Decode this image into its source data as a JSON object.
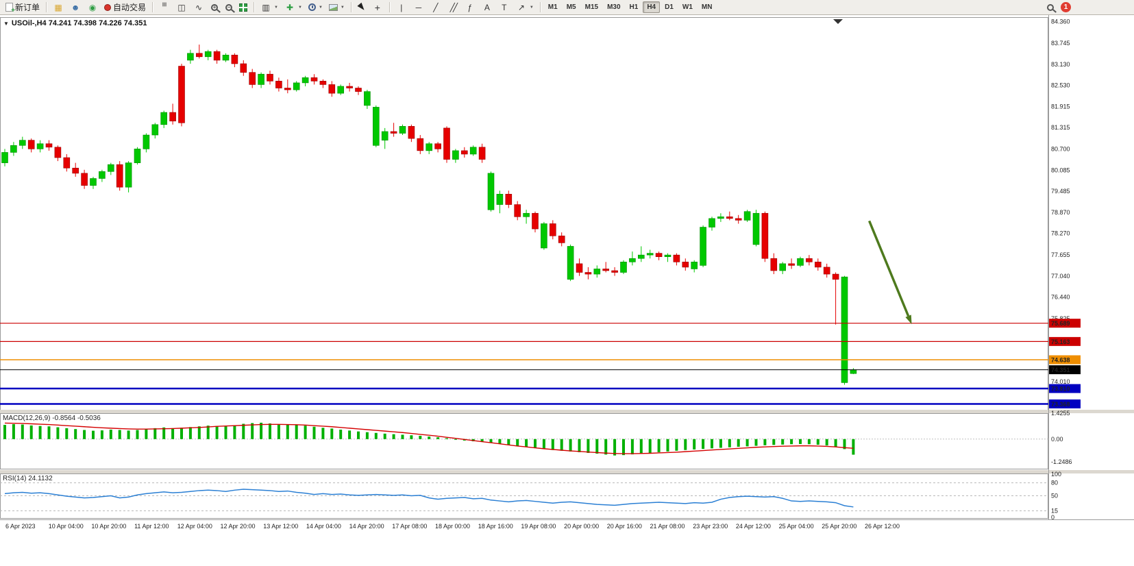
{
  "toolbar": {
    "new_order": "新订单",
    "auto_trading": "自动交易",
    "timeframes": [
      "M1",
      "M5",
      "M15",
      "M30",
      "H1",
      "H4",
      "D1",
      "W1",
      "MN"
    ],
    "active_timeframe": "H4",
    "notification_badge": "1",
    "text_tool": "A",
    "label_tool": "T"
  },
  "chart": {
    "title": "USOil-,H4 74.241 74.398 74.226 74.351",
    "macd_label": "MACD(12,26,9) -0.8564 -0.5036",
    "rsi_label": "RSI(14) 24.1132"
  },
  "chart_data": [
    {
      "type": "candlestick",
      "title": "USOil-,H4",
      "ylim": [
        73.2,
        84.45
      ],
      "y_ticks": [
        84.36,
        83.745,
        83.13,
        82.53,
        81.915,
        81.315,
        80.7,
        80.085,
        79.485,
        78.87,
        78.27,
        77.655,
        77.04,
        76.44,
        75.825,
        74.01
      ],
      "hlines": [
        {
          "value": 75.689,
          "label": "75.689",
          "color": "#cc0000",
          "width": 1.2
        },
        {
          "value": 75.163,
          "label": "75.163",
          "color": "#cc0000",
          "width": 1.2
        },
        {
          "value": 74.638,
          "label": "74.638",
          "color": "#ef8e00",
          "width": 1.5
        },
        {
          "value": 74.351,
          "label": "74.351",
          "color": "#000000",
          "width": 1
        },
        {
          "value": 73.81,
          "label": "73.810",
          "color": "#0000c0",
          "width": 2.5
        },
        {
          "value": 73.368,
          "label": "73.368",
          "color": "#0000c0",
          "width": 2.5
        }
      ],
      "up_color": "#00c800",
      "down_color": "#e60000",
      "arrow": {
        "x1_bar": 97.8,
        "y1_price": 78.63,
        "x2_bar": 102.6,
        "y2_price": 75.66,
        "color": "#4e7a1e"
      },
      "candles": [
        [
          80.3,
          80.7,
          80.2,
          80.6
        ],
        [
          80.6,
          80.9,
          80.5,
          80.8
        ],
        [
          80.8,
          81.05,
          80.7,
          80.95
        ],
        [
          80.95,
          81.0,
          80.6,
          80.7
        ],
        [
          80.7,
          80.95,
          80.6,
          80.85
        ],
        [
          80.85,
          80.95,
          80.65,
          80.75
        ],
        [
          80.75,
          80.8,
          80.35,
          80.45
        ],
        [
          80.45,
          80.55,
          80.05,
          80.15
        ],
        [
          80.15,
          80.3,
          79.9,
          80.0
        ],
        [
          80.0,
          80.1,
          79.55,
          79.65
        ],
        [
          79.65,
          79.9,
          79.55,
          79.85
        ],
        [
          79.85,
          80.1,
          79.75,
          80.05
        ],
        [
          80.05,
          80.3,
          79.95,
          80.25
        ],
        [
          80.25,
          80.35,
          79.5,
          79.6
        ],
        [
          79.6,
          80.35,
          79.45,
          80.3
        ],
        [
          80.3,
          80.75,
          80.25,
          80.7
        ],
        [
          80.7,
          81.15,
          80.6,
          81.1
        ],
        [
          81.1,
          81.45,
          81.0,
          81.4
        ],
        [
          81.4,
          81.8,
          81.3,
          81.75
        ],
        [
          81.75,
          82.0,
          81.4,
          81.5
        ],
        [
          83.08,
          83.15,
          81.35,
          81.45
        ],
        [
          83.25,
          83.55,
          83.15,
          83.45
        ],
        [
          83.45,
          83.7,
          83.3,
          83.35
        ],
        [
          83.35,
          83.55,
          83.25,
          83.5
        ],
        [
          83.5,
          83.55,
          83.15,
          83.25
        ],
        [
          83.25,
          83.45,
          83.2,
          83.4
        ],
        [
          83.4,
          83.45,
          83.05,
          83.15
        ],
        [
          83.15,
          83.25,
          82.8,
          82.9
        ],
        [
          82.9,
          83.0,
          82.45,
          82.55
        ],
        [
          82.55,
          82.9,
          82.45,
          82.85
        ],
        [
          82.85,
          82.95,
          82.55,
          82.65
        ],
        [
          82.65,
          82.75,
          82.35,
          82.45
        ],
        [
          82.45,
          82.7,
          82.3,
          82.4
        ],
        [
          82.4,
          82.65,
          82.35,
          82.6
        ],
        [
          82.6,
          82.8,
          82.5,
          82.75
        ],
        [
          82.75,
          82.85,
          82.55,
          82.65
        ],
        [
          82.65,
          82.7,
          82.45,
          82.55
        ],
        [
          82.55,
          82.65,
          82.2,
          82.3
        ],
        [
          82.3,
          82.55,
          82.25,
          82.5
        ],
        [
          82.5,
          82.6,
          82.35,
          82.45
        ],
        [
          82.45,
          82.5,
          82.25,
          82.35
        ],
        [
          81.95,
          82.4,
          81.85,
          82.35
        ],
        [
          80.8,
          81.95,
          80.75,
          81.9
        ],
        [
          80.95,
          81.3,
          80.7,
          81.2
        ],
        [
          81.2,
          81.45,
          81.05,
          81.15
        ],
        [
          81.15,
          81.4,
          81.1,
          81.35
        ],
        [
          81.35,
          81.4,
          80.9,
          81.0
        ],
        [
          81.0,
          81.1,
          80.55,
          80.65
        ],
        [
          80.65,
          80.9,
          80.55,
          80.85
        ],
        [
          80.85,
          80.9,
          80.6,
          80.7
        ],
        [
          81.3,
          81.35,
          80.3,
          80.4
        ],
        [
          80.4,
          80.7,
          80.3,
          80.65
        ],
        [
          80.65,
          80.75,
          80.45,
          80.55
        ],
        [
          80.55,
          80.8,
          80.5,
          80.75
        ],
        [
          80.75,
          80.85,
          80.3,
          80.4
        ],
        [
          78.95,
          80.05,
          78.9,
          80.0
        ],
        [
          79.1,
          79.5,
          78.85,
          79.4
        ],
        [
          79.4,
          79.5,
          79.0,
          79.1
        ],
        [
          79.1,
          79.2,
          78.65,
          78.75
        ],
        [
          78.75,
          78.95,
          78.55,
          78.85
        ],
        [
          78.85,
          78.9,
          78.3,
          78.4
        ],
        [
          77.85,
          78.6,
          77.8,
          78.55
        ],
        [
          78.55,
          78.65,
          78.1,
          78.2
        ],
        [
          78.2,
          78.3,
          77.9,
          78.0
        ],
        [
          76.95,
          77.95,
          76.9,
          77.9
        ],
        [
          77.4,
          77.55,
          77.05,
          77.15
        ],
        [
          77.15,
          77.3,
          76.95,
          77.1
        ],
        [
          77.1,
          77.35,
          77.0,
          77.25
        ],
        [
          77.25,
          77.45,
          77.15,
          77.2
        ],
        [
          77.2,
          77.3,
          77.05,
          77.15
        ],
        [
          77.15,
          77.5,
          77.1,
          77.45
        ],
        [
          77.45,
          77.75,
          77.35,
          77.55
        ],
        [
          77.55,
          77.9,
          77.45,
          77.65
        ],
        [
          77.65,
          77.8,
          77.55,
          77.7
        ],
        [
          77.7,
          77.75,
          77.5,
          77.6
        ],
        [
          77.6,
          77.7,
          77.45,
          77.65
        ],
        [
          77.65,
          77.7,
          77.35,
          77.45
        ],
        [
          77.45,
          77.55,
          77.2,
          77.3
        ],
        [
          77.25,
          77.5,
          77.15,
          77.45
        ],
        [
          77.35,
          78.5,
          77.3,
          78.45
        ],
        [
          78.45,
          78.75,
          78.35,
          78.7
        ],
        [
          78.7,
          78.85,
          78.6,
          78.75
        ],
        [
          78.75,
          78.9,
          78.65,
          78.7
        ],
        [
          78.7,
          78.8,
          78.55,
          78.65
        ],
        [
          78.65,
          78.95,
          78.6,
          78.9
        ],
        [
          77.95,
          78.95,
          77.9,
          78.85
        ],
        [
          78.85,
          78.9,
          77.45,
          77.55
        ],
        [
          77.55,
          77.7,
          77.1,
          77.2
        ],
        [
          77.2,
          77.45,
          77.1,
          77.4
        ],
        [
          77.4,
          77.55,
          77.25,
          77.35
        ],
        [
          77.35,
          77.6,
          77.3,
          77.55
        ],
        [
          77.55,
          77.65,
          77.35,
          77.45
        ],
        [
          77.45,
          77.55,
          77.2,
          77.3
        ],
        [
          77.3,
          77.4,
          77.0,
          77.1
        ],
        [
          77.1,
          77.15,
          75.65,
          76.95
        ],
        [
          73.98,
          77.05,
          73.92,
          77.02
        ],
        [
          74.241,
          74.398,
          74.226,
          74.351
        ]
      ],
      "x_labels": [
        "6 Apr 2023",
        "10 Apr 04:00",
        "10 Apr 20:00",
        "11 Apr 12:00",
        "12 Apr 04:00",
        "12 Apr 20:00",
        "13 Apr 12:00",
        "14 Apr 04:00",
        "14 Apr 20:00",
        "17 Apr 08:00",
        "18 Apr 00:00",
        "18 Apr 16:00",
        "19 Apr 08:00",
        "20 Apr 00:00",
        "20 Apr 16:00",
        "21 Apr 08:00",
        "23 Apr 23:00",
        "24 Apr 12:00",
        "25 Apr 04:00",
        "25 Apr 20:00",
        "26 Apr 12:00"
      ]
    },
    {
      "type": "bar",
      "name": "MACD(12,26,9)",
      "current_values": [
        -0.8564,
        -0.5036
      ],
      "y_tick_labels": [
        "1.4255",
        "0.00",
        "-1.2486"
      ],
      "histogram_color": "#00b000",
      "signal_color": "#d40000",
      "histogram": [
        0.78,
        0.82,
        0.8,
        0.75,
        0.72,
        0.7,
        0.65,
        0.6,
        0.55,
        0.5,
        0.46,
        0.48,
        0.52,
        0.5,
        0.47,
        0.5,
        0.55,
        0.6,
        0.64,
        0.6,
        0.62,
        0.66,
        0.7,
        0.74,
        0.72,
        0.7,
        0.76,
        0.84,
        0.88,
        0.9,
        0.86,
        0.82,
        0.8,
        0.78,
        0.74,
        0.68,
        0.62,
        0.58,
        0.52,
        0.47,
        0.42,
        0.38,
        0.34,
        0.3,
        0.27,
        0.24,
        0.21,
        0.18,
        0.14,
        0.1,
        0.05,
        -0.04,
        -0.08,
        -0.12,
        -0.16,
        -0.2,
        -0.26,
        -0.32,
        -0.38,
        -0.44,
        -0.5,
        -0.55,
        -0.6,
        -0.64,
        -0.68,
        -0.72,
        -0.76,
        -0.8,
        -0.85,
        -0.9,
        -0.88,
        -0.84,
        -0.8,
        -0.76,
        -0.72,
        -0.68,
        -0.64,
        -0.6,
        -0.57,
        -0.54,
        -0.51,
        -0.48,
        -0.45,
        -0.42,
        -0.4,
        -0.37,
        -0.34,
        -0.32,
        -0.3,
        -0.28,
        -0.27,
        -0.28,
        -0.31,
        -0.35,
        -0.42,
        -0.55,
        -0.8564
      ],
      "signal": [
        0.88,
        0.87,
        0.86,
        0.84,
        0.82,
        0.8,
        0.77,
        0.74,
        0.71,
        0.68,
        0.65,
        0.62,
        0.6,
        0.58,
        0.56,
        0.55,
        0.55,
        0.56,
        0.57,
        0.58,
        0.6,
        0.62,
        0.64,
        0.67,
        0.7,
        0.72,
        0.74,
        0.76,
        0.78,
        0.8,
        0.81,
        0.81,
        0.8,
        0.79,
        0.77,
        0.74,
        0.71,
        0.68,
        0.64,
        0.6,
        0.56,
        0.52,
        0.48,
        0.44,
        0.4,
        0.36,
        0.31,
        0.26,
        0.21,
        0.16,
        0.1,
        0.04,
        -0.02,
        -0.08,
        -0.14,
        -0.2,
        -0.26,
        -0.32,
        -0.38,
        -0.43,
        -0.48,
        -0.53,
        -0.57,
        -0.61,
        -0.65,
        -0.68,
        -0.71,
        -0.74,
        -0.77,
        -0.79,
        -0.8,
        -0.8,
        -0.79,
        -0.78,
        -0.76,
        -0.74,
        -0.72,
        -0.69,
        -0.66,
        -0.63,
        -0.6,
        -0.57,
        -0.54,
        -0.51,
        -0.48,
        -0.45,
        -0.43,
        -0.41,
        -0.39,
        -0.38,
        -0.37,
        -0.37,
        -0.38,
        -0.4,
        -0.43,
        -0.47,
        -0.5036
      ]
    },
    {
      "type": "line",
      "name": "RSI(14)",
      "current": 24.1132,
      "levels": [
        80,
        50,
        15
      ],
      "y_tick_labels": [
        "100",
        "80",
        "50",
        "15",
        "0"
      ],
      "line_color": "#2a7fd4",
      "values": [
        55,
        57,
        58,
        56,
        57,
        55,
        52,
        49,
        47,
        45,
        46,
        48,
        50,
        45,
        47,
        52,
        55,
        57,
        59,
        57,
        58,
        60,
        62,
        63,
        62,
        60,
        63,
        65,
        64,
        63,
        62,
        60,
        61,
        58,
        56,
        53,
        55,
        53,
        54,
        52,
        51,
        52,
        53,
        52,
        51,
        52,
        50,
        51,
        45,
        42,
        44,
        45,
        46,
        43,
        44,
        40,
        38,
        36,
        38,
        39,
        37,
        35,
        33,
        35,
        36,
        34,
        32,
        30,
        29,
        28,
        30,
        32,
        33,
        34,
        35,
        34,
        33,
        32,
        34,
        33,
        35,
        42,
        46,
        48,
        49,
        48,
        47,
        48,
        44,
        38,
        37,
        38,
        37,
        36,
        34,
        27,
        24.1132
      ]
    }
  ]
}
